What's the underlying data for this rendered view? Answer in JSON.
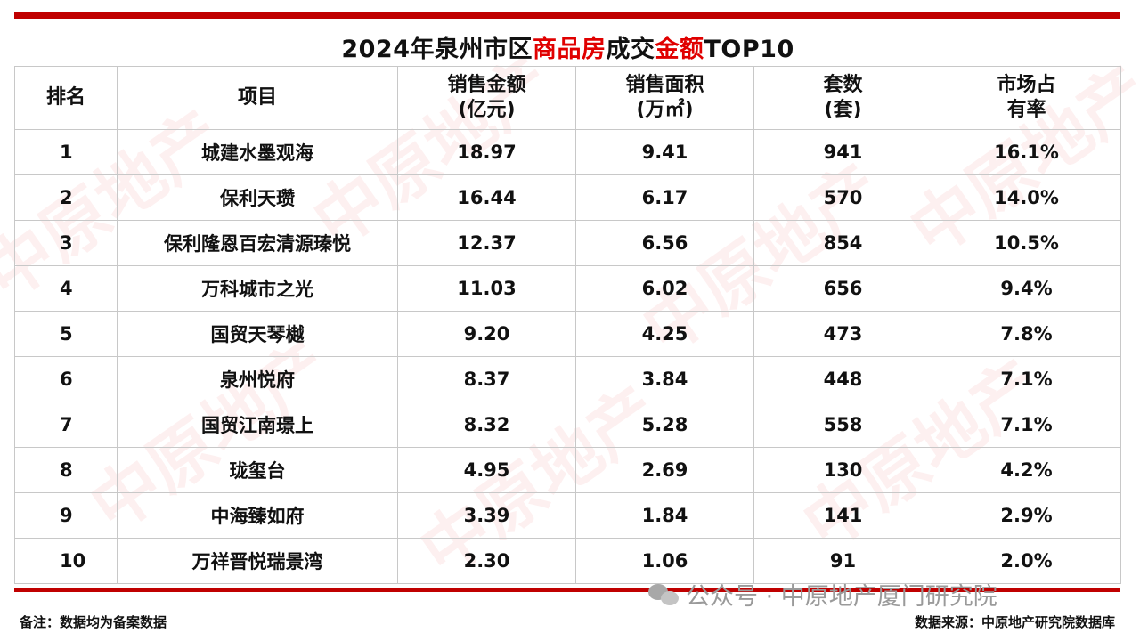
{
  "title": {
    "part1": "2024年泉州市区",
    "part2": "商品房",
    "part3": "成交",
    "part4": "金额",
    "part5": "TOP10",
    "highlight_color": "#e00000"
  },
  "headers": {
    "rank": "排名",
    "project": "项目",
    "amount_l1": "销售金额",
    "amount_l2": "(亿元)",
    "area_l1": "销售面积",
    "area_l2": "(万㎡)",
    "units_l1": "套数",
    "units_l2": "(套)",
    "share_l1": "市场占",
    "share_l2": "有率"
  },
  "rows": [
    {
      "rank": "1",
      "project": "城建水墨观海",
      "amount": "18.97",
      "area": "9.41",
      "units": "941",
      "share": "16.1%"
    },
    {
      "rank": "2",
      "project": "保利天瓒",
      "amount": "16.44",
      "area": "6.17",
      "units": "570",
      "share": "14.0%"
    },
    {
      "rank": "3",
      "project": "保利隆恩百宏清源瑧悦",
      "amount": "12.37",
      "area": "6.56",
      "units": "854",
      "share": "10.5%"
    },
    {
      "rank": "4",
      "project": "万科城市之光",
      "amount": "11.03",
      "area": "6.02",
      "units": "656",
      "share": "9.4%"
    },
    {
      "rank": "5",
      "project": "国贸天琴樾",
      "amount": "9.20",
      "area": "4.25",
      "units": "473",
      "share": "7.8%"
    },
    {
      "rank": "6",
      "project": "泉州悦府",
      "amount": "8.37",
      "area": "3.84",
      "units": "448",
      "share": "7.1%"
    },
    {
      "rank": "7",
      "project": "国贸江南璟上",
      "amount": "8.32",
      "area": "5.28",
      "units": "558",
      "share": "7.1%"
    },
    {
      "rank": "8",
      "project": "珑玺台",
      "amount": "4.95",
      "area": "2.69",
      "units": "130",
      "share": "4.2%"
    },
    {
      "rank": "9",
      "project": "中海臻如府",
      "amount": "3.39",
      "area": "1.84",
      "units": "141",
      "share": "2.9%"
    },
    {
      "rank": "10",
      "project": "万祥晋悦瑞景湾",
      "amount": "2.30",
      "area": "1.06",
      "units": "91",
      "share": "2.0%"
    }
  ],
  "footer": {
    "note": "备注：数据均为备案数据",
    "source": "数据来源：中原地产研究院数据库"
  },
  "overlay": {
    "wechat_text": "公众号 · 中原地产厦门研究院",
    "icon": "wechat-icon"
  },
  "watermark": {
    "text": "中原地产 CENTALINE PROPERTY",
    "color": "#dc2828"
  },
  "accent_color": "#c00000"
}
